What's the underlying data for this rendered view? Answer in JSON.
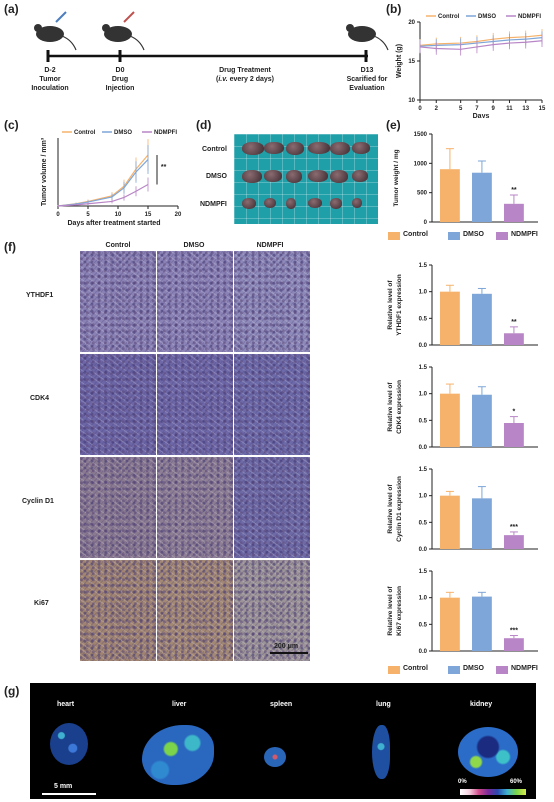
{
  "panels": {
    "a": "(a)",
    "b": "(b)",
    "c": "(c)",
    "d": "(d)",
    "e": "(e)",
    "f": "(f)",
    "g": "(g)"
  },
  "timeline": {
    "steps": [
      {
        "day": "D-2",
        "line1": "Tumor",
        "line2": "Inoculation"
      },
      {
        "day": "D0",
        "line1": "Drug",
        "line2": "Injection"
      },
      {
        "day": "D13",
        "line1": "Scarified for",
        "line2": "Evaluation"
      }
    ],
    "treatment_title": "Drug Treatment",
    "treatment_route": "i.v.",
    "treatment_schedule": "every 2 days",
    "paren_open": "(",
    "paren_close": ")"
  },
  "groups": {
    "control": "Control",
    "dmso": "DMSO",
    "ndmpfi": "NDMPFI",
    "colors": {
      "control": "#f6b26b",
      "dmso": "#7ea6d8",
      "ndmpfi": "#b886c6"
    }
  },
  "photo": {
    "rows": [
      "Control",
      "DMSO",
      "NDMPFI"
    ],
    "bg_color": "#1f9fa8"
  },
  "ihc": {
    "columns": [
      "Control",
      "DMSO",
      "NDMPFI"
    ],
    "rows": [
      "YTHDF1",
      "CDK4",
      "Cyclin D1",
      "Ki67"
    ],
    "scale_bar": "200 μm",
    "legend": [
      "Control",
      "DMSO",
      "NDMPFI"
    ]
  },
  "chart_data": [
    {
      "id": "b",
      "type": "line",
      "xlabel": "Days",
      "ylabel": "Weight (g)",
      "xticks": [
        0,
        2,
        5,
        7,
        9,
        11,
        13,
        15
      ],
      "ylim": [
        10,
        20
      ],
      "yticks": [
        10,
        15,
        20
      ],
      "legend": [
        "Control",
        "DMSO",
        "NDMPFI"
      ],
      "series": [
        {
          "name": "Control",
          "x": [
            0,
            2,
            5,
            7,
            9,
            11,
            13,
            15
          ],
          "y": [
            17.0,
            17.2,
            17.3,
            17.5,
            17.8,
            18.0,
            18.1,
            18.3
          ]
        },
        {
          "name": "DMSO",
          "x": [
            0,
            2,
            5,
            7,
            9,
            11,
            13,
            15
          ],
          "y": [
            16.9,
            17.0,
            17.1,
            17.3,
            17.5,
            17.7,
            17.8,
            18.0
          ]
        },
        {
          "name": "NDMPFI",
          "x": [
            0,
            2,
            5,
            7,
            9,
            11,
            13,
            15
          ],
          "y": [
            16.8,
            16.6,
            16.5,
            16.8,
            17.1,
            17.3,
            17.4,
            17.6
          ]
        }
      ]
    },
    {
      "id": "c",
      "type": "line",
      "xlabel": "Days after treatment started",
      "ylabel": "Tumor volume / mm³",
      "xticks": [
        0,
        5,
        10,
        15,
        20
      ],
      "ylim": [
        0,
        1200
      ],
      "legend": [
        "Control",
        "DMSO",
        "NDMPFI"
      ],
      "annotation": "**",
      "series": [
        {
          "name": "Control",
          "x": [
            0,
            3,
            5,
            9,
            11,
            13,
            15
          ],
          "y": [
            0,
            40,
            80,
            180,
            350,
            650,
            900
          ]
        },
        {
          "name": "DMSO",
          "x": [
            0,
            3,
            5,
            9,
            11,
            13,
            15
          ],
          "y": [
            0,
            35,
            70,
            160,
            320,
            600,
            820
          ]
        },
        {
          "name": "NDMPFI",
          "x": [
            0,
            3,
            5,
            9,
            11,
            13,
            15
          ],
          "y": [
            0,
            20,
            40,
            80,
            150,
            260,
            380
          ]
        }
      ]
    },
    {
      "id": "e",
      "type": "bar",
      "ylabel": "Tumor weight / mg",
      "ylim": [
        0,
        1500
      ],
      "yticks": [
        0,
        500,
        1000,
        1500
      ],
      "categories": [
        "Control",
        "DMSO",
        "NDMPFI"
      ],
      "values": [
        900,
        840,
        310
      ],
      "errors": [
        350,
        200,
        150
      ],
      "annotations": [
        "",
        "",
        "**"
      ]
    },
    {
      "id": "f1",
      "type": "bar",
      "ylabel": "Relative level of YTHDF1 expression",
      "ylim": [
        0,
        1.5
      ],
      "yticks": [
        0.0,
        0.5,
        1.0,
        1.5
      ],
      "categories": [
        "Control",
        "DMSO",
        "NDMPFI"
      ],
      "values": [
        1.0,
        0.96,
        0.22
      ],
      "errors": [
        0.12,
        0.1,
        0.12
      ],
      "annotations": [
        "",
        "",
        "**"
      ]
    },
    {
      "id": "f2",
      "type": "bar",
      "ylabel": "Relative level of CDK4 expression",
      "ylim": [
        0,
        1.5
      ],
      "yticks": [
        0.0,
        0.5,
        1.0,
        1.5
      ],
      "categories": [
        "Control",
        "DMSO",
        "NDMPFI"
      ],
      "values": [
        1.0,
        0.98,
        0.45
      ],
      "errors": [
        0.18,
        0.15,
        0.12
      ],
      "annotations": [
        "",
        "",
        "*"
      ]
    },
    {
      "id": "f3",
      "type": "bar",
      "ylabel": "Relative level of Cyclin D1 expression",
      "ylim": [
        0,
        1.5
      ],
      "yticks": [
        0.0,
        0.5,
        1.0,
        1.5
      ],
      "categories": [
        "Control",
        "DMSO",
        "NDMPFI"
      ],
      "values": [
        1.0,
        0.95,
        0.26
      ],
      "errors": [
        0.08,
        0.22,
        0.06
      ],
      "annotations": [
        "",
        "",
        "***"
      ]
    },
    {
      "id": "f4",
      "type": "bar",
      "ylabel": "Relative level of Ki67 expression",
      "ylim": [
        0,
        1.5
      ],
      "yticks": [
        0.0,
        0.5,
        1.0,
        1.5
      ],
      "categories": [
        "Control",
        "DMSO",
        "NDMPFI"
      ],
      "values": [
        1.0,
        1.02,
        0.24
      ],
      "errors": [
        0.1,
        0.08,
        0.05
      ],
      "annotations": [
        "",
        "",
        "***"
      ]
    }
  ],
  "organs": {
    "labels": [
      "heart",
      "liver",
      "spleen",
      "lung",
      "kidney"
    ],
    "scale_bar": "5 mm",
    "colorbar_min": "0%",
    "colorbar_max": "60%"
  }
}
